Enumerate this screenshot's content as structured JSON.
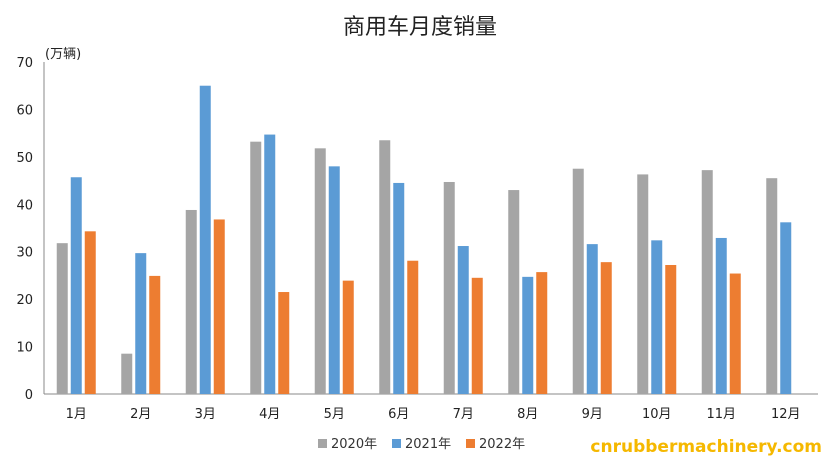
{
  "chart_data": {
    "type": "bar",
    "title": "商用车月度销量",
    "ylabel": "(万辆)",
    "xlabel": "",
    "categories": [
      "1月",
      "2月",
      "3月",
      "4月",
      "5月",
      "6月",
      "7月",
      "8月",
      "9月",
      "10月",
      "11月",
      "12月"
    ],
    "series": [
      {
        "name": "2020年",
        "color": "#a5a5a5",
        "values": [
          31.8,
          8.5,
          38.8,
          53.2,
          51.8,
          53.5,
          44.7,
          43.0,
          47.5,
          46.3,
          47.2,
          45.5
        ]
      },
      {
        "name": "2021年",
        "color": "#5b9bd5",
        "values": [
          45.7,
          29.7,
          65.0,
          54.7,
          48.0,
          44.5,
          31.2,
          24.7,
          31.6,
          32.4,
          32.9,
          36.2
        ]
      },
      {
        "name": "2022年",
        "color": "#ed7d31",
        "values": [
          34.3,
          24.9,
          36.8,
          21.5,
          23.9,
          28.1,
          24.5,
          25.7,
          27.8,
          27.2,
          25.4,
          null
        ]
      }
    ],
    "ylim": [
      0,
      70
    ],
    "yticks": [
      0,
      10,
      20,
      30,
      40,
      50,
      60,
      70
    ],
    "grid": false,
    "legend_position": "bottom-center"
  },
  "watermark": {
    "text": "cnrubbermachinery.com",
    "color": "#f5b800"
  }
}
